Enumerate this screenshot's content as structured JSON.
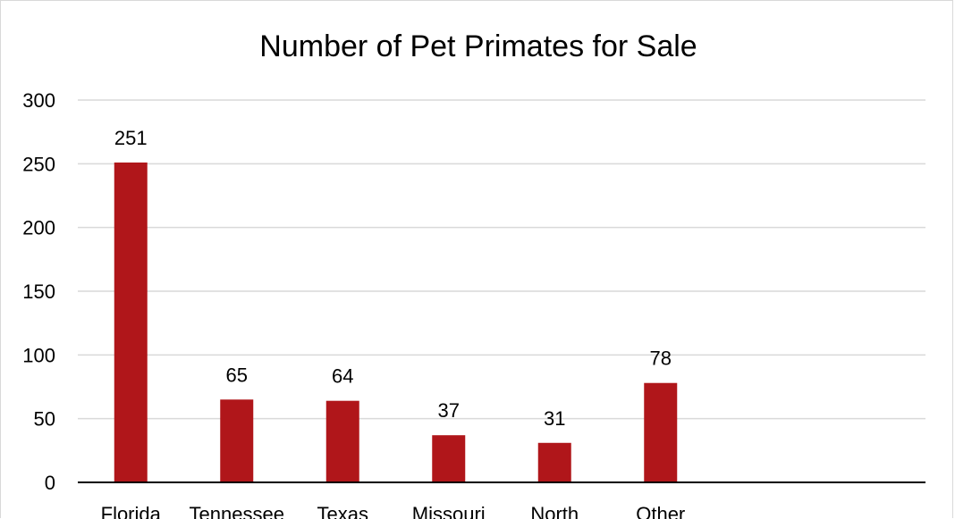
{
  "chart_data": {
    "type": "bar",
    "title": "Number of Pet Primates for Sale",
    "categories": [
      "Florida",
      "Tennessee",
      "Texas",
      "Missouri",
      "North",
      "Other"
    ],
    "values": [
      251,
      65,
      64,
      37,
      31,
      78
    ],
    "data_labels": [
      "251",
      "65",
      "64",
      "37",
      "31",
      "78"
    ],
    "ylim": [
      0,
      300
    ],
    "y_ticks": [
      0,
      50,
      100,
      150,
      200,
      250,
      300
    ],
    "slot_count": 8,
    "grid": true,
    "legend": "none",
    "colors": {
      "bar": "#b0161a",
      "grid": "#d9d9d9",
      "axis": "#000000",
      "text": "#000000"
    }
  }
}
